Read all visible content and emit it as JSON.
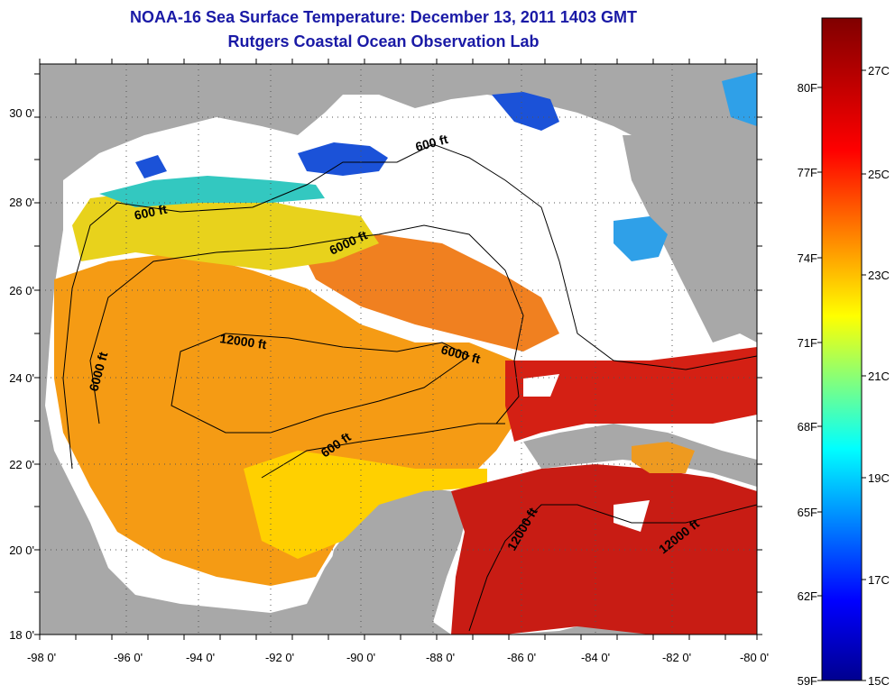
{
  "title": "NOAA-16 Sea Surface Temperature:  December 13, 2011 1403 GMT",
  "subtitle": "Rutgers Coastal Ocean Observation Lab",
  "colors": {
    "land": "#a8a8a8",
    "cloud": "#ffffff",
    "title": "#1a1aa6"
  },
  "map": {
    "lon_ticks": [
      "-98 0'",
      "-96 0'",
      "-94 0'",
      "-92 0'",
      "-90 0'",
      "-88 0'",
      "-86 0'",
      "-84 0'",
      "-82 0'",
      "-80 0'"
    ],
    "lat_ticks": [
      "30 0'",
      "28 0'",
      "26 0'",
      "24 0'",
      "22 0'",
      "20 0'",
      "18 0'"
    ],
    "contour_labels": [
      "600 ft",
      "600 ft",
      "6000 ft",
      "12000 ft",
      "6000 ft",
      "6000 ft",
      "600 ft",
      "12000 ft",
      "12000 ft"
    ]
  },
  "colorbar": {
    "fahrenheit": [
      "80F",
      "77F",
      "74F",
      "71F",
      "68F",
      "65F",
      "62F",
      "59F"
    ],
    "celsius": [
      "27C",
      "25C",
      "23C",
      "21C",
      "19C",
      "17C",
      "15C"
    ]
  }
}
